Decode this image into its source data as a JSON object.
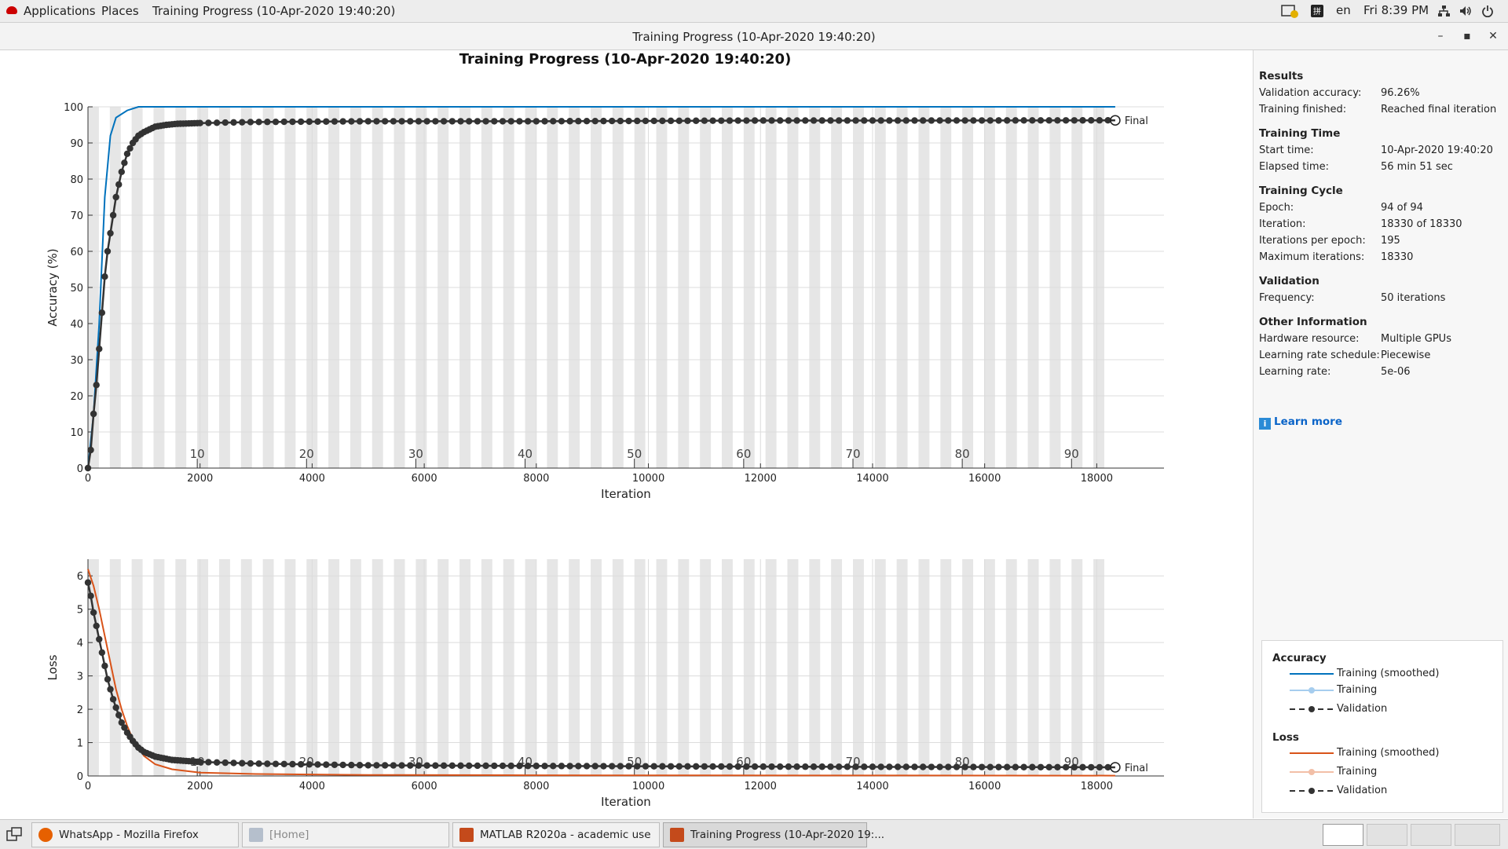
{
  "topbar": {
    "applications": "Applications",
    "places": "Places",
    "active_window": "Training Progress (10-Apr-2020 19:40:20)",
    "language": "en",
    "clock": "Fri  8:39 PM"
  },
  "window": {
    "title": "Training Progress (10-Apr-2020 19:40:20)"
  },
  "chart_data": [
    {
      "type": "line",
      "title": "Training Progress (10-Apr-2020 19:40:20)",
      "xlabel": "Iteration",
      "ylabel": "Accuracy (%)",
      "xlim": [
        0,
        19200
      ],
      "ylim": [
        0,
        100
      ],
      "xticks": [
        0,
        2000,
        4000,
        6000,
        8000,
        10000,
        12000,
        14000,
        16000,
        18000
      ],
      "yticks": [
        0,
        10,
        20,
        30,
        40,
        50,
        60,
        70,
        80,
        90,
        100
      ],
      "epoch_labels": [
        10,
        20,
        30,
        40,
        50,
        60,
        70,
        80,
        90
      ],
      "iterations_per_epoch": 195,
      "final_label": "Final",
      "series": [
        {
          "name": "Training (smoothed)",
          "color": "#0072bd",
          "x": [
            0,
            100,
            200,
            300,
            400,
            500,
            700,
            900,
            1200,
            2000,
            18330
          ],
          "y": [
            0,
            15,
            40,
            75,
            92,
            97,
            99,
            100,
            100,
            100,
            100
          ]
        },
        {
          "name": "Validation",
          "color": "#333333",
          "x": [
            0,
            50,
            100,
            150,
            200,
            250,
            300,
            350,
            400,
            450,
            500,
            600,
            700,
            800,
            900,
            1000,
            1200,
            1400,
            1600,
            2000,
            3000,
            5000,
            8000,
            10000,
            12000,
            15000,
            18330
          ],
          "y": [
            0,
            5,
            15,
            23,
            33,
            43,
            53,
            60,
            65,
            70,
            75,
            82,
            87,
            90,
            92,
            93,
            94.5,
            95,
            95.3,
            95.5,
            95.8,
            96,
            96,
            96.1,
            96.2,
            96.2,
            96.26
          ]
        }
      ]
    },
    {
      "type": "line",
      "xlabel": "Iteration",
      "ylabel": "Loss",
      "xlim": [
        0,
        19200
      ],
      "ylim": [
        0,
        6.5
      ],
      "xticks": [
        0,
        2000,
        4000,
        6000,
        8000,
        10000,
        12000,
        14000,
        16000,
        18000
      ],
      "yticks": [
        0,
        1,
        2,
        3,
        4,
        5,
        6
      ],
      "epoch_labels": [
        10,
        20,
        30,
        40,
        50,
        60,
        70,
        80,
        90
      ],
      "final_label": "Final",
      "series": [
        {
          "name": "Training (smoothed)",
          "color": "#d95319",
          "x": [
            0,
            100,
            200,
            300,
            400,
            500,
            600,
            700,
            800,
            1000,
            1200,
            1500,
            2000,
            3000,
            5000,
            8000,
            18330
          ],
          "y": [
            6.2,
            5.7,
            5.0,
            4.2,
            3.4,
            2.6,
            2.0,
            1.5,
            1.1,
            0.6,
            0.35,
            0.2,
            0.1,
            0.06,
            0.03,
            0.02,
            0.01
          ]
        },
        {
          "name": "Validation",
          "color": "#333333",
          "x": [
            0,
            50,
            100,
            150,
            200,
            250,
            300,
            350,
            400,
            450,
            500,
            600,
            700,
            800,
            900,
            1000,
            1200,
            1500,
            2000,
            3000,
            5000,
            8000,
            12000,
            18330
          ],
          "y": [
            5.8,
            5.4,
            4.9,
            4.5,
            4.1,
            3.7,
            3.3,
            2.9,
            2.6,
            2.3,
            2.05,
            1.6,
            1.3,
            1.05,
            0.85,
            0.72,
            0.58,
            0.48,
            0.42,
            0.37,
            0.32,
            0.3,
            0.28,
            0.26
          ]
        }
      ]
    }
  ],
  "info": {
    "results": {
      "heading": "Results",
      "rows": [
        {
          "label": "Validation accuracy:",
          "value": "96.26%"
        },
        {
          "label": "Training finished:",
          "value": "Reached final iteration"
        }
      ]
    },
    "time": {
      "heading": "Training Time",
      "rows": [
        {
          "label": "Start time:",
          "value": "10-Apr-2020 19:40:20"
        },
        {
          "label": "Elapsed time:",
          "value": "56 min 51 sec"
        }
      ]
    },
    "cycle": {
      "heading": "Training Cycle",
      "rows": [
        {
          "label": "Epoch:",
          "value": "94 of 94"
        },
        {
          "label": "Iteration:",
          "value": "18330 of 18330"
        },
        {
          "label": "Iterations per epoch:",
          "value": "195"
        },
        {
          "label": "Maximum iterations:",
          "value": "18330"
        }
      ]
    },
    "validation": {
      "heading": "Validation",
      "rows": [
        {
          "label": "Frequency:",
          "value": "50 iterations"
        }
      ]
    },
    "other": {
      "heading": "Other Information",
      "rows": [
        {
          "label": "Hardware resource:",
          "value": "Multiple GPUs"
        },
        {
          "label": "Learning rate schedule:",
          "value": "Piecewise"
        },
        {
          "label": "Learning rate:",
          "value": "5e-06"
        }
      ]
    },
    "learn_more": "Learn more"
  },
  "legend": {
    "accuracy_heading": "Accuracy",
    "loss_heading": "Loss",
    "acc_items": [
      "Training (smoothed)",
      "Training",
      "Validation"
    ],
    "loss_items": [
      "Training (smoothed)",
      "Training",
      "Validation"
    ],
    "colors": {
      "acc_smoothed": "#0072bd",
      "acc_raw": "#a6cdee",
      "validation": "#333333",
      "loss_smoothed": "#d95319",
      "loss_raw": "#f2bfa7"
    }
  },
  "taskbar": {
    "items": [
      {
        "label": "WhatsApp - Mozilla Firefox"
      },
      {
        "label": "[Home]"
      },
      {
        "label": "MATLAB R2020a - academic use"
      },
      {
        "label": "Training Progress (10-Apr-2020 19:..."
      }
    ]
  }
}
